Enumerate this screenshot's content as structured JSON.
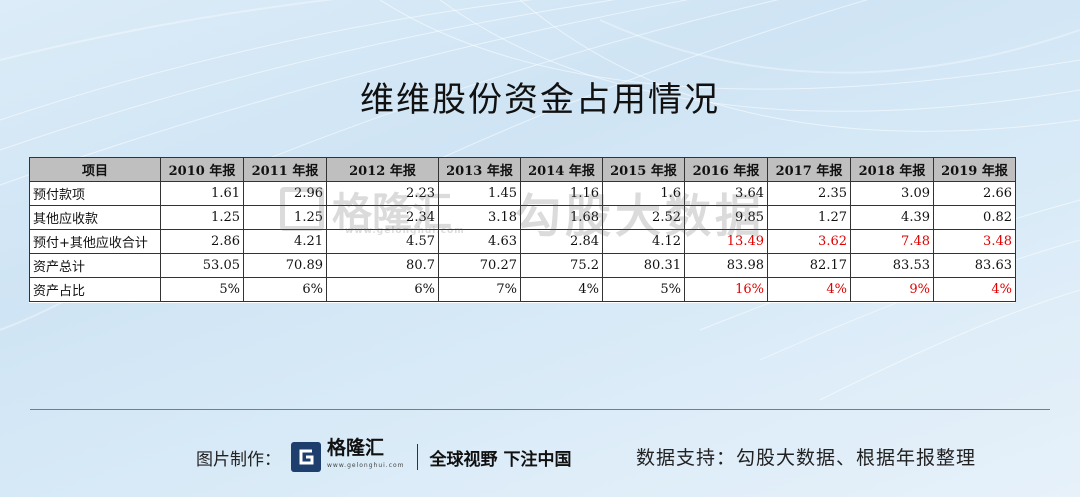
{
  "title": "维维股份资金占用情况",
  "table": {
    "headers": [
      "项目",
      "2010 年报",
      "2011 年报",
      "2012 年报",
      "2013 年报",
      "2014 年报",
      "2015 年报",
      "2016 年报",
      "2017 年报",
      "2018 年报",
      "2019 年报"
    ],
    "rows": [
      {
        "label": "预付款项",
        "values": [
          "1.61",
          "2.96",
          "2.23",
          "1.45",
          "1.16",
          "1.6",
          "3.64",
          "2.35",
          "3.09",
          "2.66"
        ],
        "red_from": 99
      },
      {
        "label": "其他应收款",
        "values": [
          "1.25",
          "1.25",
          "2.34",
          "3.18",
          "1.68",
          "2.52",
          "9.85",
          "1.27",
          "4.39",
          "0.82"
        ],
        "red_from": 99
      },
      {
        "label": "预付+其他应收合计",
        "values": [
          "2.86",
          "4.21",
          "4.57",
          "4.63",
          "2.84",
          "4.12",
          "13.49",
          "3.62",
          "7.48",
          "3.48"
        ],
        "red_from": 6
      },
      {
        "label": "资产总计",
        "values": [
          "53.05",
          "70.89",
          "80.7",
          "70.27",
          "75.2",
          "80.31",
          "83.98",
          "82.17",
          "83.53",
          "83.63"
        ],
        "red_from": 99
      },
      {
        "label": "资产占比",
        "values": [
          "5%",
          "6%",
          "6%",
          "7%",
          "4%",
          "5%",
          "16%",
          "4%",
          "9%",
          "4%"
        ],
        "red_from": 6
      }
    ],
    "highlight_color": "#e00000"
  },
  "watermark": {
    "logo": "格隆汇",
    "site": "www.gelonghui.com",
    "brand": "勾股大数据"
  },
  "footer": {
    "made_by_label": "图片制作：",
    "logo_text": "格隆汇",
    "logo_sub": "www.gelonghui.com",
    "slogan": "全球视野 下注中国",
    "source": "数据支持：勾股大数据、根据年报整理"
  }
}
